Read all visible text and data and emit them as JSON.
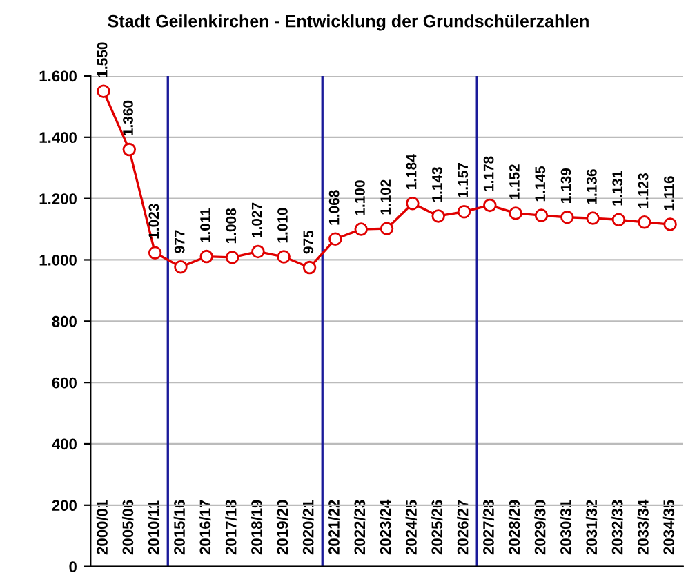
{
  "chart_data": {
    "type": "line",
    "title": "Stadt Geilenkirchen - Entwicklung der Grundschülerzahlen",
    "categories": [
      "2000/01",
      "2005/06",
      "2010/11",
      "2015/16",
      "2016/17",
      "2017/18",
      "2018/19",
      "2019/20",
      "2020/21",
      "2021/22",
      "2022/23",
      "2023/24",
      "2024/25",
      "2025/26",
      "2026/27",
      "2027/28",
      "2028/29",
      "2029/30",
      "2030/31",
      "2031/32",
      "2032/33",
      "2033/34",
      "2034/35"
    ],
    "series": [
      {
        "color": "#e00000",
        "values": [
          1550,
          1360,
          1023,
          977,
          1011,
          1008,
          1027,
          1010,
          975,
          1068,
          1100,
          1102,
          1184,
          1143,
          1157,
          1178,
          1152,
          1145,
          1139,
          1136,
          1131,
          1123,
          1116
        ],
        "value_labels": [
          "1.550",
          "1.360",
          "1.023",
          "977",
          "1.011",
          "1.008",
          "1.027",
          "1.010",
          "975",
          "1.068",
          "1.100",
          "1.102",
          "1.184",
          "1.143",
          "1.157",
          "1.178",
          "1.152",
          "1.145",
          "1.139",
          "1.136",
          "1.131",
          "1.123",
          "1.116"
        ]
      }
    ],
    "ylim": [
      0,
      1600
    ],
    "yticks": [
      {
        "value": 0,
        "label": "0"
      },
      {
        "value": 200,
        "label": "200"
      },
      {
        "value": 400,
        "label": "400"
      },
      {
        "value": 600,
        "label": "600"
      },
      {
        "value": 800,
        "label": "800"
      },
      {
        "value": 1000,
        "label": "1.000"
      },
      {
        "value": 1200,
        "label": "1.200"
      },
      {
        "value": 1400,
        "label": "1.400"
      },
      {
        "value": 1600,
        "label": "1.600"
      }
    ],
    "grid": "y",
    "marker": "circle",
    "line_style": "solid"
  }
}
